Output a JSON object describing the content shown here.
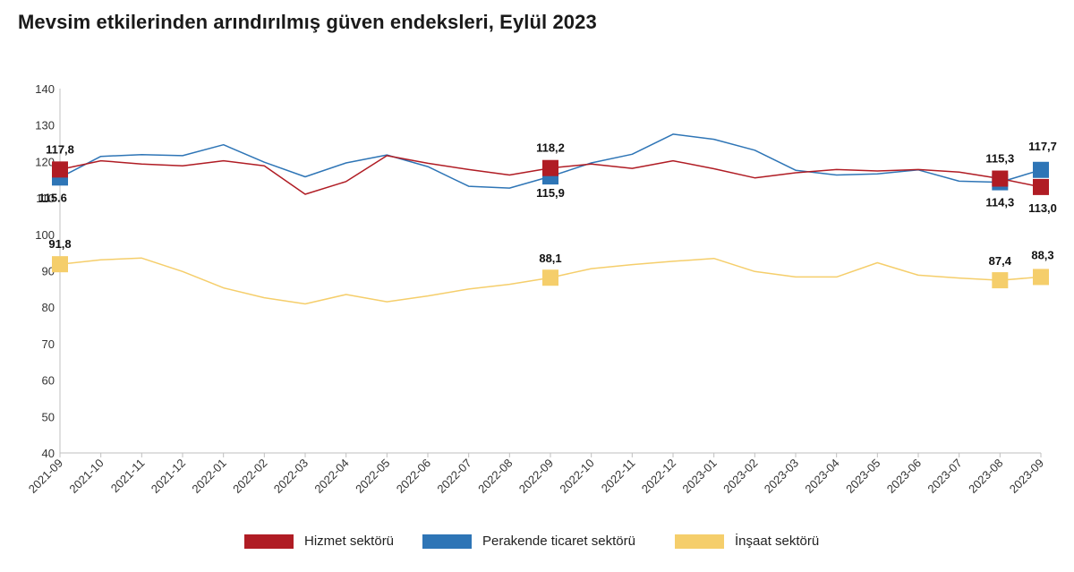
{
  "title": "Mevsim etkilerinden arındırılmış güven endeksleri, Eylül 2023",
  "chart_data": {
    "type": "line",
    "title": "Mevsim etkilerinden arındırılmış güven endeksleri, Eylül 2023",
    "xlabel": "",
    "ylabel": "",
    "ylim": [
      40,
      140
    ],
    "yticks": [
      40,
      50,
      60,
      70,
      80,
      90,
      100,
      110,
      120,
      130,
      140
    ],
    "grid": false,
    "legend_position": "bottom",
    "categories": [
      "2021-09",
      "2021-10",
      "2021-11",
      "2021-12",
      "2022-01",
      "2022-02",
      "2022-03",
      "2022-04",
      "2022-05",
      "2022-06",
      "2022-07",
      "2022-08",
      "2022-09",
      "2022-10",
      "2022-11",
      "2022-12",
      "2023-01",
      "2023-02",
      "2023-03",
      "2023-04",
      "2023-05",
      "2023-06",
      "2023-07",
      "2023-08",
      "2023-09"
    ],
    "series": [
      {
        "name": "Hizmet sektörü",
        "color": "#B01C24",
        "values": [
          117.8,
          120.2,
          119.3,
          118.8,
          120.2,
          118.8,
          111.0,
          114.5,
          121.6,
          119.5,
          117.8,
          116.3,
          118.2,
          119.3,
          118.1,
          120.2,
          118.0,
          115.5,
          116.9,
          117.8,
          117.4,
          117.8,
          117.1,
          115.3,
          113.0
        ],
        "labels": [
          {
            "index": 0,
            "text": "117,8"
          },
          {
            "index": 12,
            "text": "118,2"
          },
          {
            "index": 23,
            "text": "115,3"
          },
          {
            "index": 24,
            "text": "113,0"
          }
        ]
      },
      {
        "name": "Perakende ticaret sektörü",
        "color": "#2E75B6",
        "values": [
          115.6,
          121.4,
          121.9,
          121.6,
          124.6,
          119.8,
          115.8,
          119.6,
          121.8,
          118.6,
          113.2,
          112.7,
          115.9,
          119.6,
          122.0,
          127.5,
          126.1,
          123.1,
          117.6,
          116.3,
          116.6,
          117.7,
          114.6,
          114.3,
          117.7
        ],
        "labels": [
          {
            "index": 0,
            "text": "115.6"
          },
          {
            "index": 12,
            "text": "115,9"
          },
          {
            "index": 23,
            "text": "114,3"
          },
          {
            "index": 24,
            "text": "117,7"
          }
        ]
      },
      {
        "name": "İnşaat sektörü",
        "color": "#F5CE6B",
        "values": [
          91.8,
          93.0,
          93.5,
          89.8,
          85.3,
          82.6,
          80.9,
          83.5,
          81.5,
          83.1,
          85.0,
          86.3,
          88.1,
          90.6,
          91.7,
          92.6,
          93.4,
          89.8,
          88.3,
          88.3,
          92.2,
          88.8,
          88.0,
          87.4,
          88.3
        ],
        "labels": [
          {
            "index": 0,
            "text": "91,8"
          },
          {
            "index": 12,
            "text": "88,1"
          },
          {
            "index": 23,
            "text": "87,4"
          },
          {
            "index": 24,
            "text": "88,3"
          }
        ]
      }
    ],
    "markers": [
      0,
      12,
      23,
      24
    ]
  },
  "legend": [
    {
      "label": "Hizmet sektörü",
      "color": "#B01C24"
    },
    {
      "label": "Perakende ticaret sektörü",
      "color": "#2E75B6"
    },
    {
      "label": "İnşaat sektörü",
      "color": "#F5CE6B"
    }
  ]
}
